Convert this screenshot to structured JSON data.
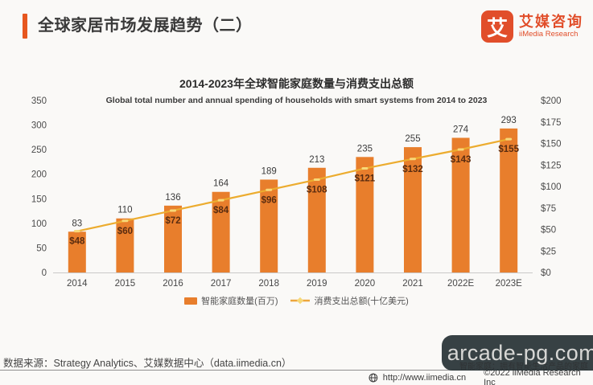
{
  "header": {
    "title": "全球家居市场发展趋势（二）"
  },
  "brand": {
    "logo_char": "艾",
    "name_cn": "艾媒咨询",
    "name_en": "iiMedia Research"
  },
  "chart_data": {
    "type": "bar+line",
    "title": "2014-2023年全球智能家庭数量与消费支出总额",
    "subtitle": "Global total number and  annual spending of households with smart systems from 2014 to 2023",
    "categories": [
      "2014",
      "2015",
      "2016",
      "2017",
      "2018",
      "2019",
      "2020",
      "2021",
      "2022E",
      "2023E"
    ],
    "series": [
      {
        "name": "智能家庭数量(百万)",
        "type": "bar",
        "axis": "left",
        "color": "#e87e2c",
        "values": [
          83,
          110,
          136,
          164,
          189,
          213,
          235,
          255,
          274,
          293
        ]
      },
      {
        "name": "消费支出总额(十亿美元)",
        "type": "line",
        "axis": "right",
        "color": "#ecac2f",
        "values": [
          48,
          60,
          72,
          84,
          96,
          108,
          121,
          132,
          143,
          155
        ],
        "labels": [
          "$48",
          "$60",
          "$72",
          "$84",
          "$96",
          "$108",
          "$121",
          "$132",
          "$143",
          "$155"
        ]
      }
    ],
    "left_axis": {
      "min": 0,
      "max": 350,
      "step": 50
    },
    "right_axis": {
      "min": 0,
      "max": 200,
      "step": 25,
      "prefix": "$"
    },
    "legend_position": "bottom",
    "grid": false
  },
  "footnote": {
    "text": "智能家庭：拥有智能生活产品的家庭"
  },
  "footer": {
    "source": "数据来源：Strategy Analytics、艾媒数据中心（data.iimedia.cn）",
    "site": "http://www.iimedia.cn",
    "copyright": "©2022  iiMedia Research  Inc"
  },
  "watermark": {
    "text": "arcade-pg.com"
  },
  "colors": {
    "accent": "#e7571f",
    "brand": "#e14e2a",
    "bar": "#e87e2c",
    "line": "#ecac2f",
    "marker": "#f7d878",
    "bar_value_label": "#3b3b3b",
    "line_value_label": "#5a2c10",
    "axis_text": "#4c4c4c"
  }
}
